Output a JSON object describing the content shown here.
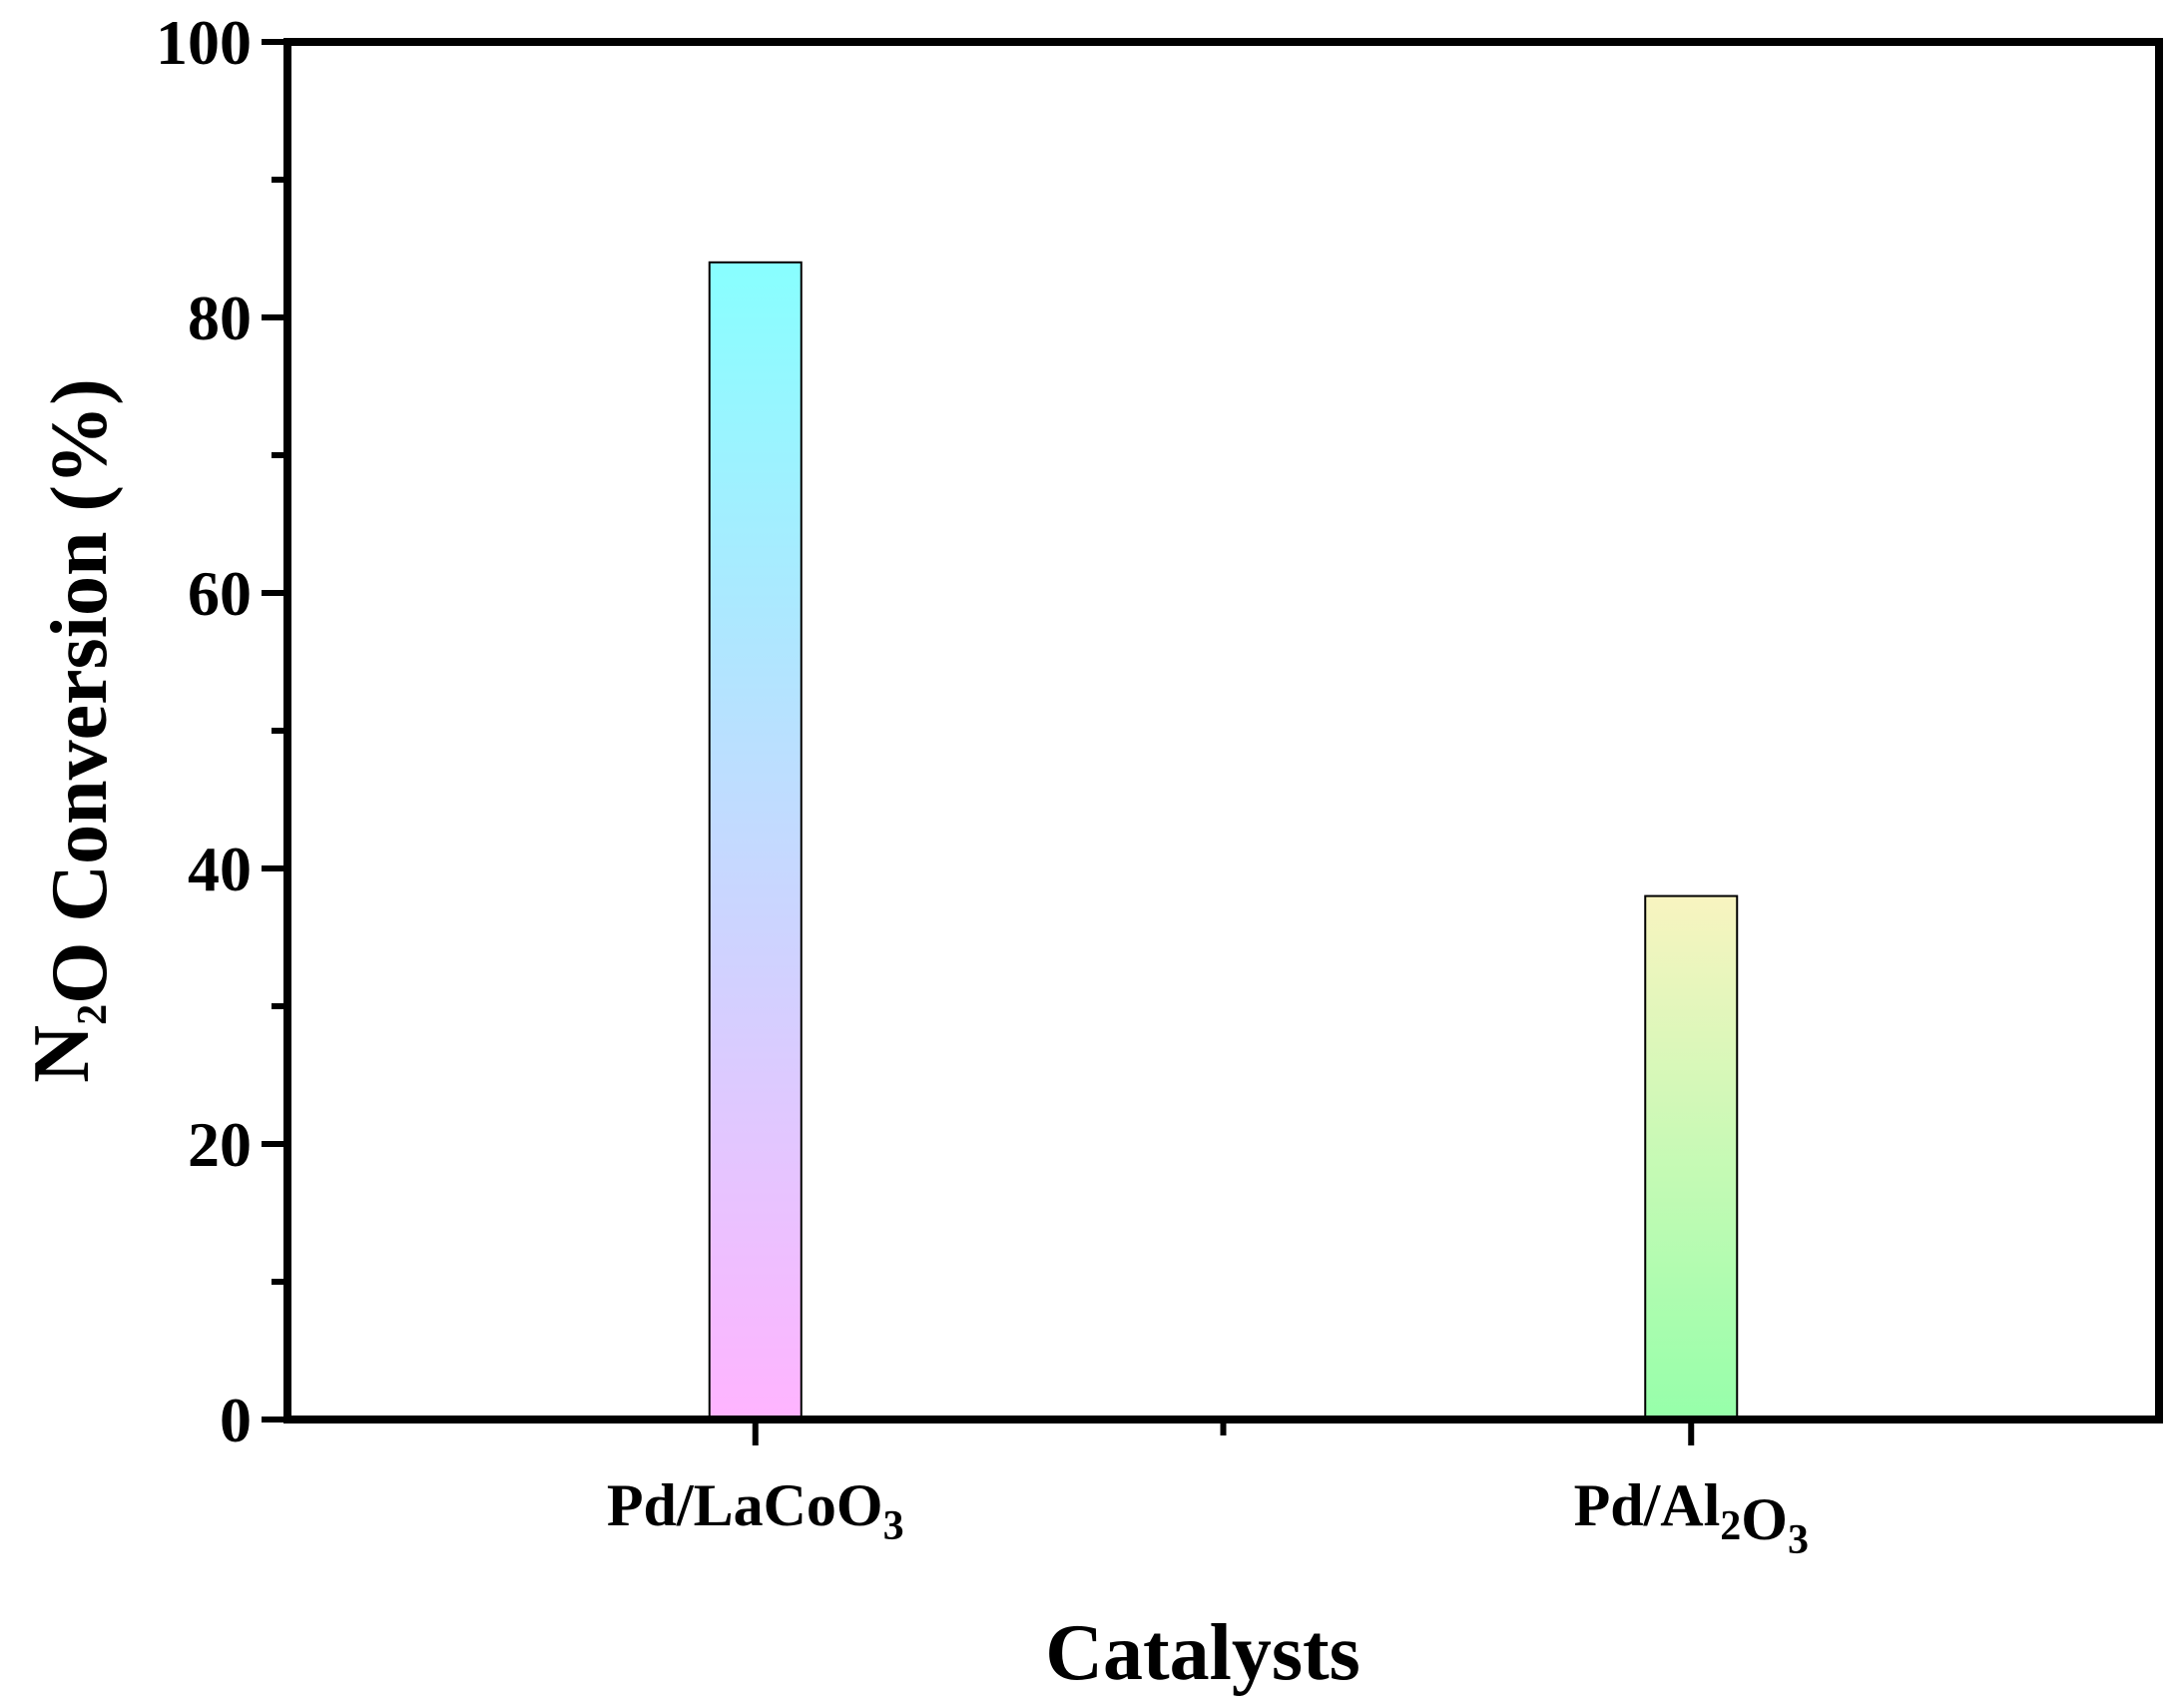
{
  "chart_data": {
    "type": "bar",
    "categories": [
      {
        "parts": [
          {
            "t": "Pd/LaCoO"
          },
          {
            "t": "3",
            "sub": true
          }
        ]
      },
      {
        "parts": [
          {
            "t": "Pd/Al"
          },
          {
            "t": "2",
            "sub": true
          },
          {
            "t": "O"
          },
          {
            "t": "3",
            "sub": true
          }
        ]
      }
    ],
    "values": [
      84,
      38
    ],
    "bar_gradients": [
      {
        "top": "#88ffff",
        "bottom": "#ffb4ff"
      },
      {
        "top": "#f8f4c0",
        "bottom": "#96ffaa"
      }
    ],
    "xlabel": "Catalysts",
    "ylabel": {
      "parts": [
        {
          "t": "N"
        },
        {
          "t": "2",
          "sub": true
        },
        {
          "t": "O Conversion (%)"
        }
      ]
    },
    "ylim": [
      0,
      100
    ],
    "yticks": [
      0,
      20,
      40,
      60,
      80,
      100
    ],
    "yminor": [
      10,
      30,
      50,
      70,
      90
    ],
    "grid": false,
    "legend": "none"
  }
}
